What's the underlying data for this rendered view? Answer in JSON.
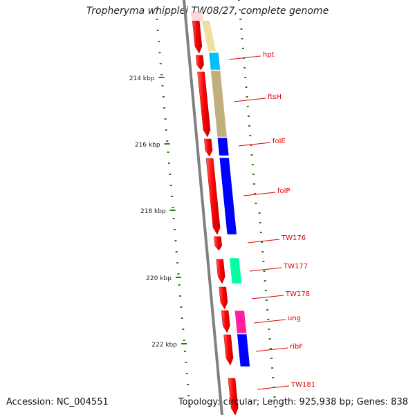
{
  "title": "Tropheryma whipplei TW08/27, complete genome",
  "footer": {
    "accession": "Accession: NC_004551",
    "summary": "Topology: circular; Length: 925,938 bp; Genes: 838"
  },
  "ruler_labels": [
    "214 kbp",
    "216 kbp",
    "218 kbp",
    "220 kbp",
    "222 kbp"
  ],
  "genes": [
    {
      "name": "hpt",
      "color": "#00bfff"
    },
    {
      "name": "ftsH",
      "color": "#c0b080"
    },
    {
      "name": "folE",
      "color": "#0000ff"
    },
    {
      "name": "folP",
      "color": "#0000ff"
    },
    {
      "name": "TW176",
      "color": ""
    },
    {
      "name": "TW177",
      "color": "#00ffa0"
    },
    {
      "name": "TW178",
      "color": ""
    },
    {
      "name": "ung",
      "color": "#ff20a0"
    },
    {
      "name": "ribF",
      "color": "#0000ff"
    },
    {
      "name": "TW181",
      "color": ""
    }
  ],
  "colors": {
    "strand_arrow": "#ff0000",
    "label_line": "#dd0000",
    "ruler_tick": "#2a7a1a",
    "backbone": "#808080",
    "top_feature": "#f0e0a0"
  }
}
